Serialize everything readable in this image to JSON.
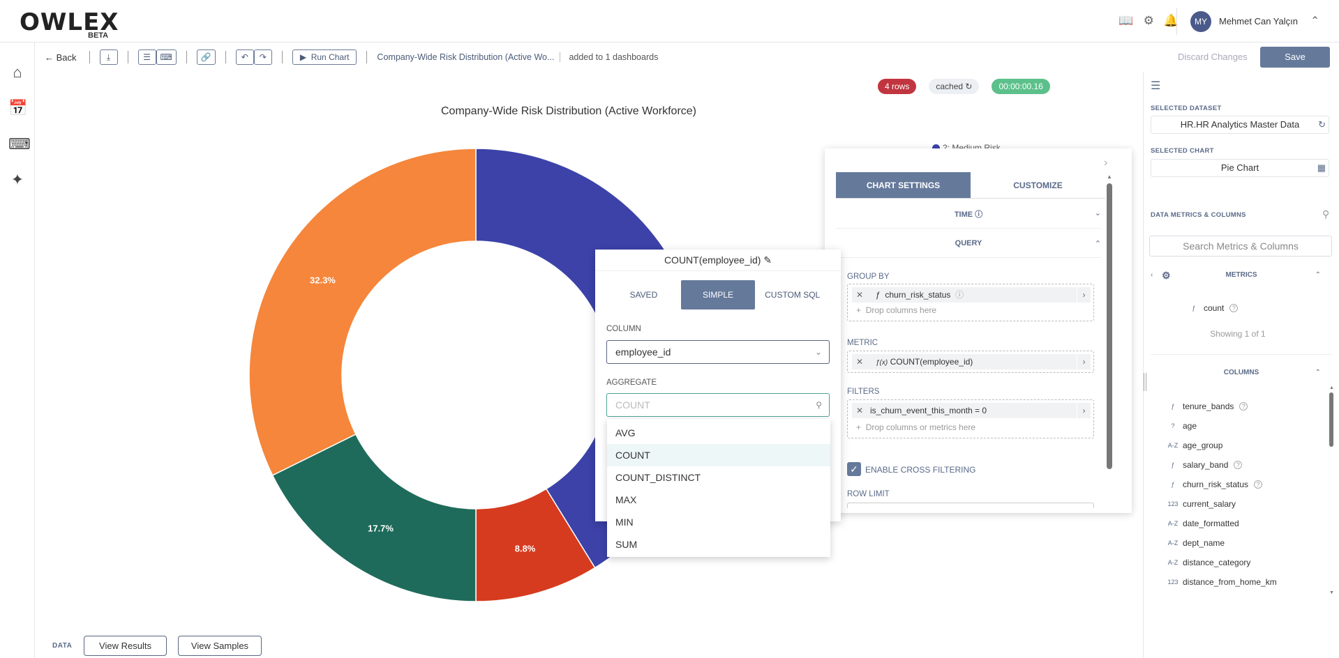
{
  "header": {
    "logo_text": "OWLEX",
    "logo_beta": "BETA",
    "avatar_initials": "MY",
    "user_name": "Mehmet Can Yalçın"
  },
  "toolbar": {
    "back_label": "Back",
    "run_chart_label": "Run Chart",
    "chart_title": "Company-Wide Risk Distribution (Active Wo...",
    "dashboards_info": "added to 1 dashboards",
    "discard_label": "Discard Changes",
    "save_label": "Save"
  },
  "status": {
    "rows": "4 rows",
    "cached": "cached",
    "elapsed": "00:00:00.16"
  },
  "chart_data": {
    "type": "pie",
    "title": "Company-Wide Risk Distribution (Active Workforce)",
    "donut": true,
    "labels": [
      "32.3%",
      "17.7%",
      "8.8%"
    ],
    "slices": [
      {
        "name": "",
        "value": 41.2,
        "color": "#3c42a8",
        "label": ""
      },
      {
        "name": "",
        "value": 8.8,
        "color": "#d63b1f",
        "label": "8.8%"
      },
      {
        "name": "",
        "value": 17.7,
        "color": "#1e6b5b",
        "label": "17.7%"
      },
      {
        "name": "",
        "value": 32.3,
        "color": "#f5863b",
        "label": "32.3%"
      }
    ],
    "legend_partial": "2: Medium Risk"
  },
  "data_bar": {
    "label": "DATA",
    "view_results": "View Results",
    "view_samples": "View Samples"
  },
  "settings": {
    "tab_chart": "CHART SETTINGS",
    "tab_customize": "CUSTOMIZE",
    "time_label": "TIME",
    "query_label": "QUERY",
    "group_by_label": "GROUP BY",
    "group_by_chip": "churn_risk_status",
    "drop_columns_hint": "Drop columns here",
    "metric_label": "METRIC",
    "metric_chip": "COUNT(employee_id)",
    "filters_label": "FILTERS",
    "filter_chip": "is_churn_event_this_month = 0",
    "drop_filters_hint": "Drop columns or metrics here",
    "cross_filter_label": "ENABLE CROSS FILTERING",
    "row_limit_label": "ROW LIMIT"
  },
  "popover": {
    "title": "COUNT(employee_id)",
    "tabs": [
      "SAVED",
      "SIMPLE",
      "CUSTOM SQL"
    ],
    "column_label": "COLUMN",
    "column_value": "employee_id",
    "aggregate_label": "AGGREGATE",
    "aggregate_placeholder": "COUNT",
    "options": [
      "AVG",
      "COUNT",
      "COUNT_DISTINCT",
      "MAX",
      "MIN",
      "SUM"
    ],
    "selected_option": "COUNT"
  },
  "right_panel": {
    "selected_dataset_label": "SELECTED DATASET",
    "dataset": "HR.HR Analytics Master Data",
    "selected_chart_label": "SELECTED CHART",
    "chart": "Pie Chart",
    "metrics_columns_label": "DATA METRICS & COLUMNS",
    "search_placeholder": "Search Metrics & Columns",
    "metrics_label": "METRICS",
    "metric_item": "count",
    "showing": "Showing 1 of 1",
    "columns_label": "COLUMNS",
    "columns": [
      {
        "type": "ƒ",
        "name": "tenure_bands",
        "help": true
      },
      {
        "type": "?",
        "name": "age",
        "help": false
      },
      {
        "type": "A-Z",
        "name": "age_group",
        "help": false
      },
      {
        "type": "ƒ",
        "name": "salary_band",
        "help": true
      },
      {
        "type": "ƒ",
        "name": "churn_risk_status",
        "help": true
      },
      {
        "type": "123",
        "name": "current_salary",
        "help": false
      },
      {
        "type": "A-Z",
        "name": "date_formatted",
        "help": false
      },
      {
        "type": "A-Z",
        "name": "dept_name",
        "help": false
      },
      {
        "type": "A-Z",
        "name": "distance_category",
        "help": false
      },
      {
        "type": "123",
        "name": "distance_from_home_km",
        "help": false
      }
    ]
  }
}
